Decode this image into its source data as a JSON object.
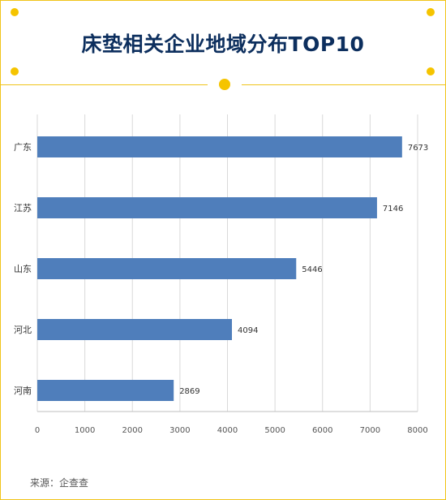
{
  "header": {
    "title": "床垫相关企业地域分布TOP10"
  },
  "footer": {
    "source": "来源：企查查"
  },
  "colors": {
    "accent": "#f5c400",
    "title": "#0d2f5e",
    "bar": "#4f7ebb"
  },
  "chart_data": {
    "type": "bar",
    "orientation": "horizontal",
    "categories": [
      "广东",
      "江苏",
      "山东",
      "河北",
      "河南"
    ],
    "values": [
      7673,
      7146,
      5446,
      4094,
      2869
    ],
    "xlim": [
      0,
      8000
    ],
    "xticks": [
      0,
      1000,
      2000,
      3000,
      4000,
      5000,
      6000,
      7000,
      8000
    ],
    "grid": "vertical",
    "data_labels": true,
    "legend": "none"
  }
}
